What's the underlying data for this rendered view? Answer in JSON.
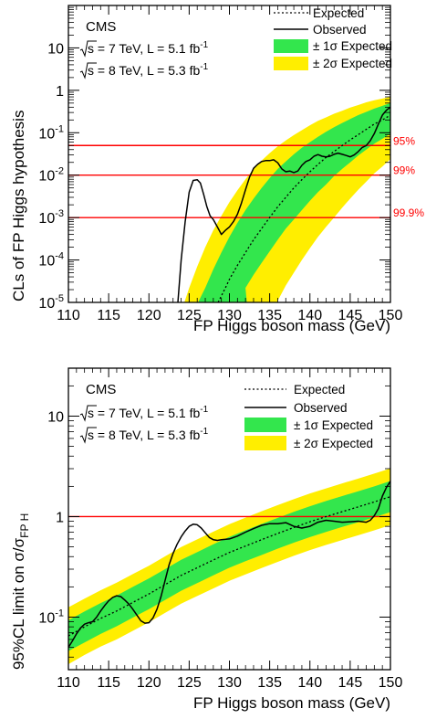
{
  "colors": {
    "band_1sigma": "#33e64d",
    "band_2sigma": "#ffee00",
    "observed": "#000000",
    "expected": "#000000",
    "cl_lines": "#ff0000"
  },
  "chart_data": [
    {
      "type": "line",
      "title": "",
      "xlabel": "FP Higgs boson mass (GeV)",
      "ylabel": "CLs of FP Higgs hypothesis",
      "xlim": [
        110,
        150
      ],
      "ylim": [
        1e-05,
        100
      ],
      "yscale": "log",
      "x_ticks": [
        "110",
        "115",
        "120",
        "125",
        "130",
        "135",
        "140",
        "145",
        "150"
      ],
      "y_ticks": [
        {
          "base": "10",
          "exp": "-5",
          "value": 1e-05
        },
        {
          "base": "10",
          "exp": "-4",
          "value": 0.0001
        },
        {
          "base": "10",
          "exp": "-3",
          "value": 0.001
        },
        {
          "base": "10",
          "exp": "-2",
          "value": 0.01
        },
        {
          "base": "10",
          "exp": "-1",
          "value": 0.1
        },
        {
          "base": "1",
          "exp": "",
          "value": 1
        },
        {
          "base": "10",
          "exp": "",
          "value": 10
        }
      ],
      "annotation": {
        "experiment": "CMS",
        "lumi_lines": [
          {
            "pre": "s = 7 TeV, L = 5.1 fb",
            "sup": "-1"
          },
          {
            "pre": "s = 8 TeV, L = 5.3 fb",
            "sup": "-1"
          }
        ]
      },
      "legend": {
        "position": "top-right",
        "entries": [
          {
            "label": "Expected",
            "style": "dotted"
          },
          {
            "label": "Observed",
            "style": "solid"
          },
          {
            "label": "± 1σ Expected",
            "style": "band1"
          },
          {
            "label": "± 2σ Expected",
            "style": "band2"
          }
        ]
      },
      "reference_lines": [
        {
          "y": 0.05,
          "label": "95%"
        },
        {
          "y": 0.01,
          "label": "99%"
        },
        {
          "y": 0.001,
          "label": "99.9%"
        }
      ],
      "series": [
        {
          "name": "Expected",
          "x": [
            128.6,
            129.5,
            130,
            131,
            132,
            133,
            134,
            135,
            136,
            137,
            138,
            139,
            140,
            141,
            142,
            143,
            144,
            145,
            146,
            147,
            148,
            149,
            150
          ],
          "y": [
            1e-05,
            2.2e-05,
            3.5e-05,
            7.5e-05,
            0.00015,
            0.0003,
            0.00055,
            0.001,
            0.0018,
            0.003,
            0.005,
            0.0078,
            0.012,
            0.018,
            0.026,
            0.036,
            0.05,
            0.068,
            0.09,
            0.12,
            0.16,
            0.2,
            0.26
          ]
        },
        {
          "name": "± 1σ Expected",
          "x": [
            126.1,
            127,
            128,
            129,
            130,
            131,
            132,
            133,
            134,
            135,
            136,
            137,
            138,
            139,
            140,
            141,
            142,
            143,
            144,
            145,
            146,
            147,
            148,
            149,
            150
          ],
          "low": [
            null,
            null,
            null,
            null,
            null,
            null,
            2.2e-05,
            4.5e-05,
            8.5e-05,
            0.00016,
            0.0003,
            0.00055,
            0.0009,
            0.0015,
            0.0025,
            0.004,
            0.006,
            0.0095,
            0.014,
            0.02,
            0.029,
            0.04,
            0.055,
            0.072,
            0.095
          ],
          "high": [
            1e-05,
            2.2e-05,
            6e-05,
            0.00015,
            0.00035,
            0.00075,
            0.0015,
            0.0028,
            0.005,
            0.0085,
            0.014,
            0.021,
            0.031,
            0.044,
            0.06,
            0.08,
            0.105,
            0.135,
            0.17,
            0.21,
            0.26,
            0.31,
            0.37,
            0.43,
            0.5
          ],
          "low_start_x": 132.6
        },
        {
          "name": "± 2σ Expected",
          "x": [
            124.4,
            125,
            126,
            127,
            128,
            129,
            130,
            131,
            132,
            133,
            134,
            135,
            136,
            137,
            138,
            139,
            140,
            141,
            142,
            143,
            144,
            145,
            146,
            147,
            148,
            149,
            150
          ],
          "low": [
            null,
            null,
            null,
            null,
            null,
            null,
            null,
            null,
            null,
            null,
            null,
            null,
            1.1e-05,
            2.5e-05,
            5e-05,
            0.0001,
            0.00019,
            0.00035,
            0.0006,
            0.001,
            0.0017,
            0.0028,
            0.0045,
            0.007,
            0.011,
            0.016,
            0.024
          ],
          "high": [
            1e-05,
            2.2e-05,
            7e-05,
            0.0002,
            0.0005,
            0.0011,
            0.0023,
            0.0044,
            0.008,
            0.014,
            0.022,
            0.033,
            0.048,
            0.066,
            0.088,
            0.115,
            0.15,
            0.19,
            0.23,
            0.28,
            0.33,
            0.39,
            0.45,
            0.52,
            0.58,
            0.64,
            0.7
          ],
          "low_start_x": 135.6
        },
        {
          "name": "Observed",
          "x": [
            123.6,
            124,
            124.5,
            125,
            125.5,
            126,
            126.4,
            126.8,
            127.2,
            127.6,
            128,
            128.5,
            129,
            129.5,
            130,
            130.5,
            131,
            131.5,
            132,
            132.5,
            133,
            133.5,
            134,
            134.5,
            135,
            135.5,
            136,
            136.5,
            137,
            137.5,
            138,
            138.5,
            139,
            139.5,
            140,
            140.5,
            141,
            141.5,
            142,
            142.5,
            143,
            143.5,
            144,
            144.5,
            145,
            145.5,
            146,
            146.5,
            147,
            147.5,
            148,
            148.5,
            149,
            149.5,
            150
          ],
          "y": [
            1e-05,
            0.0001,
            0.0008,
            0.004,
            0.0075,
            0.0078,
            0.0065,
            0.0035,
            0.0018,
            0.0011,
            0.0009,
            0.0006,
            0.0004,
            0.0005,
            0.0006,
            0.0008,
            0.0012,
            0.0022,
            0.0045,
            0.009,
            0.0145,
            0.018,
            0.021,
            0.022,
            0.022,
            0.023,
            0.0195,
            0.014,
            0.012,
            0.0125,
            0.0115,
            0.0125,
            0.017,
            0.021,
            0.023,
            0.028,
            0.0305,
            0.028,
            0.027,
            0.028,
            0.031,
            0.033,
            0.031,
            0.029,
            0.027,
            0.03,
            0.036,
            0.045,
            0.05,
            0.065,
            0.095,
            0.16,
            0.26,
            0.34,
            0.4
          ]
        }
      ]
    },
    {
      "type": "line",
      "title": "",
      "xlabel": "FP Higgs boson mass (GeV)",
      "ylabel_parts": {
        "pre": "95%CL limit on σ/σ",
        "sub": "FP H"
      },
      "xlim": [
        110,
        150
      ],
      "ylim": [
        0.03,
        30
      ],
      "yscale": "log",
      "x_ticks": [
        "110",
        "115",
        "120",
        "125",
        "130",
        "135",
        "140",
        "145",
        "150"
      ],
      "y_ticks": [
        {
          "base": "10",
          "exp": "-1",
          "value": 0.1
        },
        {
          "base": "1",
          "exp": "",
          "value": 1
        },
        {
          "base": "10",
          "exp": "",
          "value": 10
        }
      ],
      "annotation": {
        "experiment": "CMS",
        "lumi_lines": [
          {
            "pre": "s = 7 TeV, L = 5.1 fb",
            "sup": "-1"
          },
          {
            "pre": "s = 8 TeV, L = 5.3 fb",
            "sup": "-1"
          }
        ]
      },
      "legend": {
        "position": "top-right",
        "entries": [
          {
            "label": "Expected",
            "style": "dotted"
          },
          {
            "label": "Observed",
            "style": "solid"
          },
          {
            "label": "± 1σ Expected",
            "style": "band1"
          },
          {
            "label": "± 2σ Expected",
            "style": "band2"
          }
        ]
      },
      "reference_lines": [
        {
          "y": 1,
          "label": ""
        }
      ],
      "series": [
        {
          "name": "Expected",
          "x": [
            110,
            112,
            114,
            116,
            118,
            120,
            122,
            124,
            126,
            128,
            130,
            132,
            134,
            136,
            138,
            140,
            142,
            144,
            146,
            148,
            150
          ],
          "y": [
            0.065,
            0.08,
            0.097,
            0.115,
            0.14,
            0.17,
            0.21,
            0.26,
            0.31,
            0.37,
            0.44,
            0.51,
            0.59,
            0.68,
            0.78,
            0.89,
            1.0,
            1.12,
            1.25,
            1.4,
            1.58
          ]
        },
        {
          "name": "± 1σ Expected",
          "x": [
            110,
            112,
            114,
            116,
            118,
            120,
            122,
            124,
            126,
            128,
            130,
            132,
            134,
            136,
            138,
            140,
            142,
            144,
            146,
            148,
            150
          ],
          "low": [
            0.046,
            0.056,
            0.068,
            0.081,
            0.099,
            0.12,
            0.148,
            0.183,
            0.218,
            0.26,
            0.31,
            0.36,
            0.415,
            0.48,
            0.55,
            0.625,
            0.705,
            0.79,
            0.88,
            0.985,
            1.11
          ],
          "high": [
            0.093,
            0.114,
            0.138,
            0.164,
            0.2,
            0.243,
            0.3,
            0.372,
            0.443,
            0.53,
            0.63,
            0.73,
            0.845,
            0.97,
            1.115,
            1.27,
            1.43,
            1.6,
            1.79,
            2.0,
            2.26
          ]
        },
        {
          "name": "± 2σ Expected",
          "x": [
            110,
            112,
            114,
            116,
            118,
            120,
            122,
            124,
            126,
            128,
            130,
            132,
            134,
            136,
            138,
            140,
            142,
            144,
            146,
            148,
            150
          ],
          "low": [
            0.034,
            0.042,
            0.051,
            0.06,
            0.073,
            0.089,
            0.11,
            0.136,
            0.162,
            0.193,
            0.23,
            0.266,
            0.308,
            0.355,
            0.407,
            0.465,
            0.522,
            0.585,
            0.652,
            0.73,
            0.823
          ],
          "high": [
            0.125,
            0.153,
            0.185,
            0.22,
            0.268,
            0.325,
            0.402,
            0.498,
            0.594,
            0.708,
            0.842,
            0.976,
            1.13,
            1.3,
            1.49,
            1.7,
            1.91,
            2.14,
            2.39,
            2.68,
            3.02
          ]
        },
        {
          "name": "Observed",
          "x": [
            110,
            110.5,
            111,
            111.5,
            112,
            112.5,
            113,
            113.5,
            114,
            114.5,
            115,
            115.5,
            116,
            116.5,
            117,
            117.5,
            118,
            118.5,
            119,
            119.5,
            120,
            120.5,
            121,
            121.5,
            122,
            122.5,
            123,
            123.5,
            124,
            124.5,
            125,
            125.5,
            126,
            126.5,
            127,
            127.5,
            128,
            128.5,
            129,
            130,
            131,
            132,
            133,
            134,
            135,
            136,
            137,
            138,
            139,
            140,
            141,
            142,
            143,
            144,
            145,
            146,
            147,
            147.5,
            148,
            148.5,
            149,
            149.5,
            150
          ],
          "y": [
            0.05,
            0.058,
            0.068,
            0.078,
            0.085,
            0.088,
            0.09,
            0.1,
            0.115,
            0.13,
            0.145,
            0.157,
            0.163,
            0.16,
            0.148,
            0.135,
            0.12,
            0.105,
            0.092,
            0.087,
            0.088,
            0.098,
            0.12,
            0.16,
            0.23,
            0.33,
            0.43,
            0.53,
            0.63,
            0.72,
            0.8,
            0.84,
            0.83,
            0.77,
            0.69,
            0.62,
            0.59,
            0.58,
            0.59,
            0.6,
            0.64,
            0.7,
            0.76,
            0.82,
            0.85,
            0.85,
            0.87,
            0.8,
            0.77,
            0.8,
            0.88,
            0.92,
            0.9,
            0.88,
            0.89,
            0.9,
            0.88,
            0.92,
            1.02,
            1.2,
            1.6,
            1.95,
            2.25
          ]
        }
      ]
    }
  ]
}
